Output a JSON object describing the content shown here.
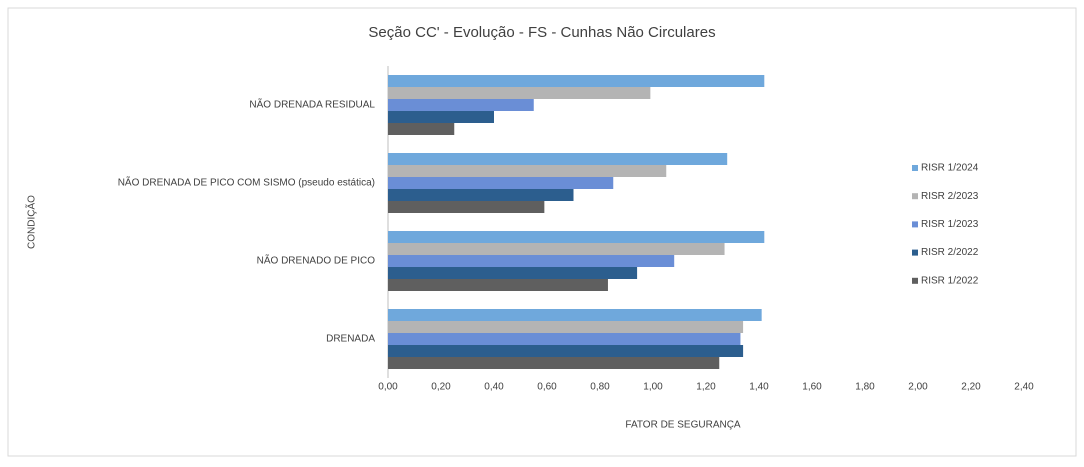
{
  "chart_data": {
    "type": "hbar",
    "title": "Seção CC' - Evolução - FS - Cunhas Não Circulares",
    "x_label": "FATOR DE SEGURANÇA",
    "y_label": "CONDIÇÃO",
    "categories": [
      "NÃO DRENADA RESIDUAL",
      "NÃO DRENADA DE PICO COM SISMO (pseudo estática)",
      "NÃO DRENADO DE  PICO",
      "DRENADA"
    ],
    "series": [
      {
        "name": "RISR 1/2024",
        "color": "#6fa8dc",
        "values": [
          1.42,
          1.28,
          1.42,
          1.41
        ]
      },
      {
        "name": "RISR 2/2023",
        "color": "#b4b4b4",
        "values": [
          0.99,
          1.05,
          1.27,
          1.34
        ]
      },
      {
        "name": "RISR 1/2023",
        "color": "#6a8ed6",
        "values": [
          0.55,
          0.85,
          1.08,
          1.33
        ]
      },
      {
        "name": "RISR 2/2022",
        "color": "#2c5e8e",
        "values": [
          0.4,
          0.7,
          0.94,
          1.34
        ]
      },
      {
        "name": "RISR 1/2022",
        "color": "#5f5f5f",
        "values": [
          0.25,
          0.59,
          0.83,
          1.25
        ]
      }
    ],
    "xlim": [
      0,
      2.4
    ],
    "xticks": [
      {
        "value": 0,
        "label": "0,00"
      },
      {
        "value": 0.2,
        "label": "0,20"
      },
      {
        "value": 0.4,
        "label": "0,40"
      },
      {
        "value": 0.6,
        "label": "0,60"
      },
      {
        "value": 0.8,
        "label": "0,80"
      },
      {
        "value": 1.0,
        "label": "1,00"
      },
      {
        "value": 1.2,
        "label": "1,20"
      },
      {
        "value": 1.4,
        "label": "1,40"
      },
      {
        "value": 1.6,
        "label": "1,60"
      },
      {
        "value": 1.8,
        "label": "1,80"
      },
      {
        "value": 2.0,
        "label": "2,00"
      },
      {
        "value": 2.2,
        "label": "2,20"
      },
      {
        "value": 2.4,
        "label": "2,40"
      }
    ],
    "legend": "right"
  }
}
